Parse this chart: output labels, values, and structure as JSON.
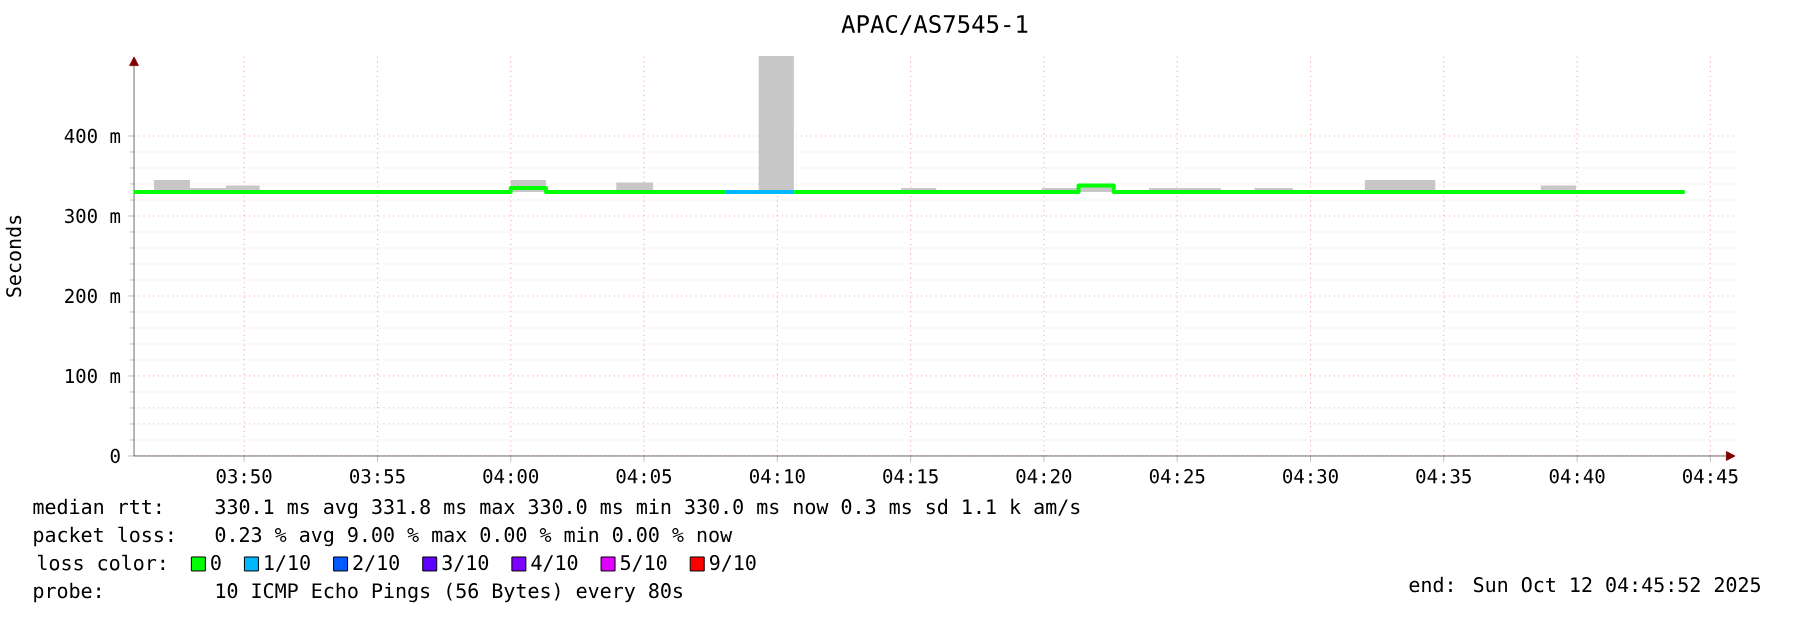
{
  "chart_data": {
    "type": "line",
    "title": "APAC/AS7545-1",
    "ylabel": "Seconds",
    "xlim": [
      3.7645,
      4.766
    ],
    "ylim": [
      0,
      500
    ],
    "xticks": [
      {
        "value": 3.8333,
        "label": "03:50"
      },
      {
        "value": 3.9167,
        "label": "03:55"
      },
      {
        "value": 4.0,
        "label": "04:00"
      },
      {
        "value": 4.0833,
        "label": "04:05"
      },
      {
        "value": 4.1667,
        "label": "04:10"
      },
      {
        "value": 4.25,
        "label": "04:15"
      },
      {
        "value": 4.3333,
        "label": "04:20"
      },
      {
        "value": 4.4167,
        "label": "04:25"
      },
      {
        "value": 4.5,
        "label": "04:30"
      },
      {
        "value": 4.5833,
        "label": "04:35"
      },
      {
        "value": 4.6667,
        "label": "04:40"
      },
      {
        "value": 4.75,
        "label": "04:45"
      }
    ],
    "yticks": [
      0,
      {
        "value": 100,
        "label": "100 m"
      },
      {
        "value": 200,
        "label": "200 m"
      },
      {
        "value": 300,
        "label": "300 m"
      },
      {
        "value": 400,
        "label": "400 m"
      }
    ],
    "grid": true,
    "legend": "bottom",
    "legend_title": "loss color:",
    "annotations": [
      "median rtt:",
      "330.1 ms avg  331.8 ms max  330.0 ms min  330.0 ms now  0.3 ms sd  1.1 k am/s",
      "packet loss:",
      "0.23 % avg  9.00 % max  0.00 % min  0.00 % now",
      "probe:",
      "10 ICMP Echo Pings (56 Bytes) every 80s",
      "end: Sun Oct 12 04:45:52 2025"
    ],
    "series": [
      {
        "name": "0",
        "color": "#00ff00",
        "x": [
          3.7645,
          3.777,
          3.777,
          3.7995,
          3.7995,
          3.822,
          3.822,
          3.843,
          3.843,
          4.0,
          4.0,
          4.022,
          4.022,
          4.066,
          4.066,
          4.089,
          4.089,
          4.134,
          4.155,
          4.177,
          4.177,
          4.244,
          4.244,
          4.266,
          4.266,
          4.332,
          4.332,
          4.355,
          4.355,
          4.377,
          4.377,
          4.399,
          4.399,
          4.444,
          4.444,
          4.465,
          4.465,
          4.489,
          4.489,
          4.534,
          4.534,
          4.578,
          4.578,
          4.644,
          4.644,
          4.666,
          4.666,
          4.734
        ],
        "values": [
          330,
          330,
          330,
          330,
          330,
          330,
          330,
          330,
          330,
          330,
          335,
          335,
          330,
          330,
          330,
          330,
          330,
          330,
          null,
          null,
          330,
          330,
          330,
          330,
          330,
          330,
          330,
          330,
          338,
          338,
          330,
          330,
          330,
          330,
          330,
          330,
          330,
          330,
          330,
          330,
          330,
          330,
          330,
          330,
          330,
          330,
          330,
          330
        ],
        "lower": [
          null,
          null,
          330,
          330,
          330,
          330,
          330,
          330,
          null,
          null,
          330,
          330,
          null,
          null,
          330,
          330,
          null,
          null,
          330,
          330,
          null,
          null,
          330,
          330,
          null,
          null,
          330,
          330,
          330,
          330,
          null,
          null,
          330,
          330,
          null,
          null,
          330,
          330,
          null,
          null,
          330,
          330,
          null,
          null,
          330,
          330,
          null,
          null
        ],
        "upper": [
          null,
          null,
          345,
          345,
          335,
          335,
          338,
          338,
          null,
          null,
          345,
          345,
          null,
          null,
          342,
          342,
          null,
          null,
          500,
          500,
          null,
          null,
          335,
          335,
          null,
          null,
          335,
          335,
          340,
          340,
          null,
          null,
          335,
          335,
          null,
          null,
          335,
          335,
          null,
          null,
          345,
          345,
          null,
          null,
          338,
          338,
          null,
          null
        ]
      },
      {
        "name": "1/10",
        "color": "#00b8ff",
        "x": [
          4.134,
          4.177
        ],
        "values": [
          330,
          330
        ]
      },
      {
        "name": "2/10",
        "color": "#0059ff"
      },
      {
        "name": "3/10",
        "color": "#5e00ff"
      },
      {
        "name": "4/10",
        "color": "#7e00ff"
      },
      {
        "name": "5/10",
        "color": "#dd00ff"
      },
      {
        "name": "9/10",
        "color": "#ff0000"
      }
    ]
  }
}
